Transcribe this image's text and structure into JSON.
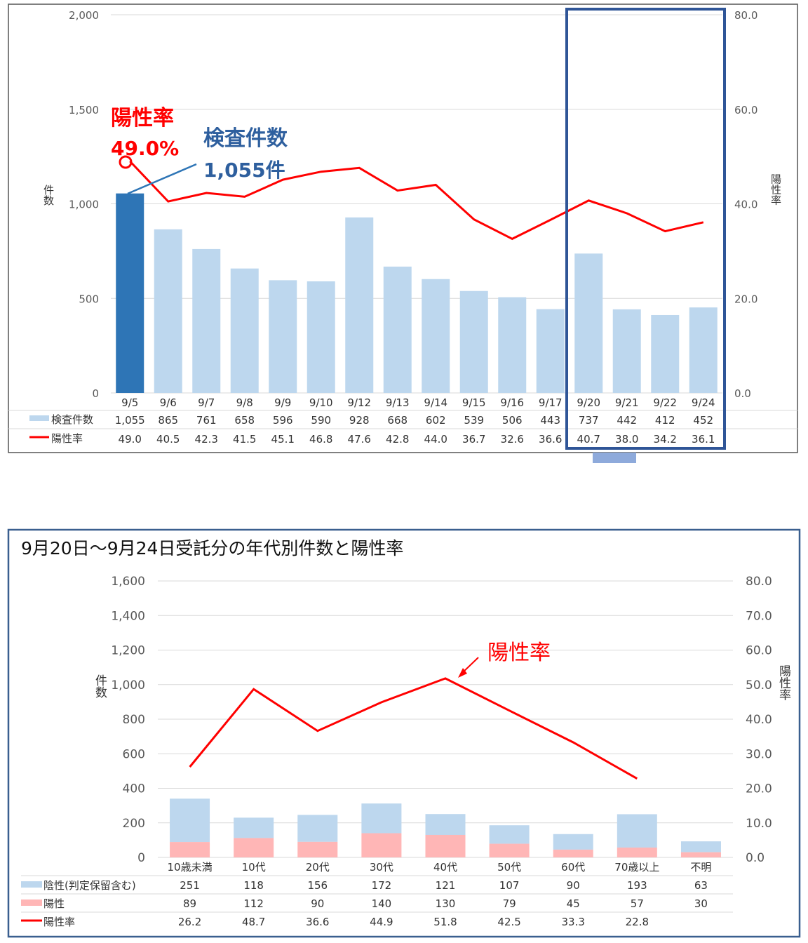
{
  "chart_data": [
    {
      "type": "bar",
      "y_left_label": "件数",
      "y_right_label": "陽性率",
      "ylim_left": [
        0,
        2000
      ],
      "ylim_right": [
        0,
        80
      ],
      "y_left_ticks": [
        "2,000",
        "1,500",
        "1,000",
        "500",
        "0"
      ],
      "y_right_ticks": [
        "80.0",
        "60.0",
        "40.0",
        "20.0",
        "0.0"
      ],
      "categories": [
        "9/5",
        "9/6",
        "9/7",
        "9/8",
        "9/9",
        "9/10",
        "9/12",
        "9/13",
        "9/14",
        "9/15",
        "9/16",
        "9/17",
        "9/20",
        "9/21",
        "9/22",
        "9/24"
      ],
      "series": [
        {
          "name": "検査件数",
          "kind": "bar",
          "axis": "left",
          "values": [
            1055,
            865,
            761,
            658,
            596,
            590,
            928,
            668,
            602,
            539,
            506,
            443,
            737,
            442,
            412,
            452
          ],
          "labels": [
            "1,055",
            "865",
            "761",
            "658",
            "596",
            "590",
            "928",
            "668",
            "602",
            "539",
            "506",
            "443",
            "737",
            "442",
            "412",
            "452"
          ],
          "color": "#bdd7ee",
          "highlight_color": "#2e75b6"
        },
        {
          "name": "陽性率",
          "kind": "line",
          "axis": "right",
          "values": [
            49.0,
            40.5,
            42.3,
            41.5,
            45.1,
            46.8,
            47.6,
            42.8,
            44.0,
            36.7,
            32.6,
            36.6,
            40.7,
            38.0,
            34.2,
            36.1
          ],
          "labels": [
            "49.0",
            "40.5",
            "42.3",
            "41.5",
            "45.1",
            "46.8",
            "47.6",
            "42.8",
            "44.0",
            "36.7",
            "32.6",
            "36.6",
            "40.7",
            "38.0",
            "34.2",
            "36.1"
          ],
          "color": "#ff0000"
        }
      ],
      "annotations": {
        "rate_title": "陽性率",
        "rate_value": "49.0%",
        "count_title": "検査件数",
        "count_value": "1,055件"
      },
      "grid": true
    },
    {
      "type": "bar",
      "title": "9月20日～9月24日受託分の年代別件数と陽性率",
      "y_left_label": "件数",
      "y_right_label": "陽性率",
      "ylim_left": [
        0,
        1600
      ],
      "ylim_right": [
        0,
        80
      ],
      "y_left_ticks": [
        "1,600",
        "1,400",
        "1,200",
        "1,000",
        "800",
        "600",
        "400",
        "200",
        "0"
      ],
      "y_right_ticks": [
        "80.0",
        "70.0",
        "60.0",
        "50.0",
        "40.0",
        "30.0",
        "20.0",
        "10.0",
        "0.0"
      ],
      "categories": [
        "10歳未満",
        "10代",
        "20代",
        "30代",
        "40代",
        "50代",
        "60代",
        "70歳以上",
        "不明"
      ],
      "stacked": true,
      "series": [
        {
          "name": "陰性(判定保留含む)",
          "kind": "bar",
          "axis": "left",
          "values": [
            251,
            118,
            156,
            172,
            121,
            107,
            90,
            193,
            63
          ],
          "labels": [
            "251",
            "118",
            "156",
            "172",
            "121",
            "107",
            "90",
            "193",
            "63"
          ],
          "color": "#bdd7ee"
        },
        {
          "name": "陽性",
          "kind": "bar",
          "axis": "left",
          "values": [
            89,
            112,
            90,
            140,
            130,
            79,
            45,
            57,
            30
          ],
          "labels": [
            "89",
            "112",
            "90",
            "140",
            "130",
            "79",
            "45",
            "57",
            "30"
          ],
          "color": "#ffb6b6"
        },
        {
          "name": "陽性率",
          "kind": "line",
          "axis": "right",
          "values": [
            26.2,
            48.7,
            36.6,
            44.9,
            51.8,
            42.5,
            33.3,
            22.8,
            null
          ],
          "labels": [
            "26.2",
            "48.7",
            "36.6",
            "44.9",
            "51.8",
            "42.5",
            "33.3",
            "22.8",
            ""
          ],
          "color": "#ff0000"
        }
      ],
      "annotations": {
        "rate_title": "陽性率"
      },
      "grid": true
    }
  ],
  "colors": {
    "frame": "#555555",
    "highlight_box": "#2f5597",
    "arrow": "#8eaadb",
    "grid": "#d9d9d9",
    "axis_text": "#595959"
  }
}
